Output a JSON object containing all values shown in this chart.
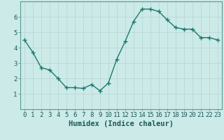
{
  "x": [
    0,
    1,
    2,
    3,
    4,
    5,
    6,
    7,
    8,
    9,
    10,
    11,
    12,
    13,
    14,
    15,
    16,
    17,
    18,
    19,
    20,
    21,
    22,
    23
  ],
  "y": [
    4.5,
    3.7,
    2.7,
    2.55,
    2.0,
    1.4,
    1.4,
    1.35,
    1.6,
    1.2,
    1.7,
    3.25,
    4.4,
    5.7,
    6.5,
    6.5,
    6.35,
    5.8,
    5.3,
    5.2,
    5.2,
    4.65,
    4.65,
    4.5
  ],
  "line_color": "#1a7a6e",
  "marker": "+",
  "marker_size": 4,
  "bg_color": "#cceae8",
  "grid_color": "#b8d8d5",
  "xlabel": "Humidex (Indice chaleur)",
  "xlim": [
    -0.5,
    23.5
  ],
  "ylim": [
    0,
    7
  ],
  "yticks": [
    1,
    2,
    3,
    4,
    5,
    6
  ],
  "xticks": [
    0,
    1,
    2,
    3,
    4,
    5,
    6,
    7,
    8,
    9,
    10,
    11,
    12,
    13,
    14,
    15,
    16,
    17,
    18,
    19,
    20,
    21,
    22,
    23
  ],
  "tick_fontsize": 6.5,
  "xlabel_fontsize": 7.5,
  "line_width": 1.0
}
